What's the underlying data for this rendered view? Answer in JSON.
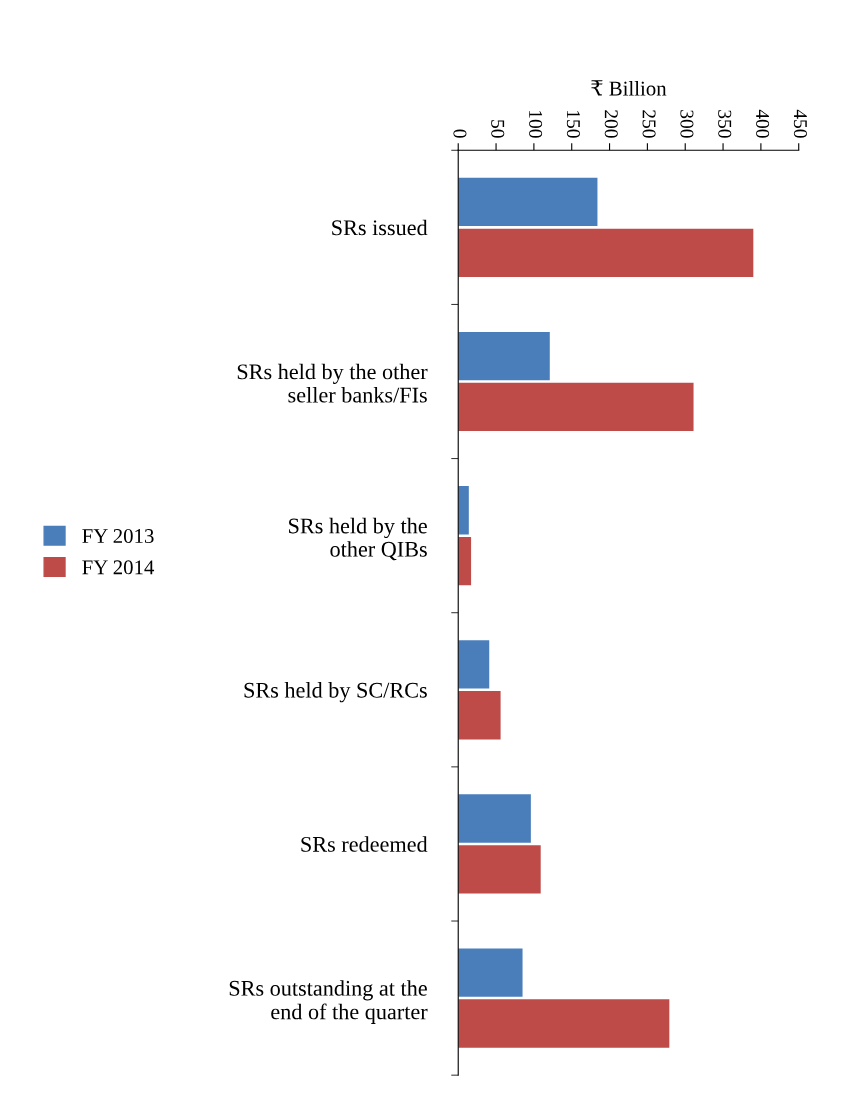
{
  "chart_data": {
    "type": "bar",
    "orientation": "horizontal",
    "xlabel": "₹ Billion",
    "categories": [
      "SRs issued",
      "SRs held by the other\nseller banks/FIs",
      "SRs held by the\nother QIBs",
      "SRs held by SC/RCs",
      "SRs redeemed",
      "SRs outstanding at the\nend of the quarter"
    ],
    "series": [
      {
        "name": "FY 2013",
        "color": "#4a7ebb",
        "values": [
          184,
          121,
          14,
          41,
          96,
          85
        ]
      },
      {
        "name": "FY 2014",
        "color": "#be4b48",
        "values": [
          390,
          311,
          17,
          56,
          109,
          279
        ]
      }
    ],
    "xlim": [
      0,
      450
    ],
    "xticks": [
      0,
      50,
      100,
      150,
      200,
      250,
      300,
      350,
      400,
      450
    ],
    "grid": false,
    "legend": "left"
  }
}
